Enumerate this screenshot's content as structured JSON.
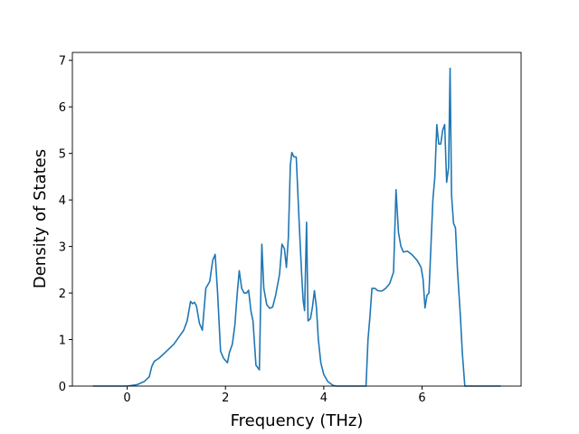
{
  "chart_data": {
    "type": "line",
    "xlabel": "Frequency (THz)",
    "ylabel": "Density of States",
    "color": "#1f77b4",
    "xlim": [
      -1.115,
      8.015
    ],
    "ylim": [
      0,
      7.17
    ],
    "xticks": [
      0,
      2,
      4,
      6
    ],
    "yticks": [
      0,
      1,
      2,
      3,
      4,
      5,
      6,
      7
    ],
    "x": [
      -0.7,
      0,
      0.2,
      0.35,
      0.45,
      0.5,
      0.55,
      0.65,
      0.8,
      0.95,
      1.05,
      1.15,
      1.22,
      1.29,
      1.33,
      1.37,
      1.41,
      1.47,
      1.53,
      1.6,
      1.68,
      1.74,
      1.79,
      1.84,
      1.9,
      1.96,
      2.04,
      2.08,
      2.14,
      2.19,
      2.24,
      2.28,
      2.33,
      2.38,
      2.43,
      2.47,
      2.52,
      2.56,
      2.62,
      2.69,
      2.71,
      2.74,
      2.78,
      2.84,
      2.9,
      2.96,
      3.02,
      3.1,
      3.15,
      3.2,
      3.24,
      3.28,
      3.32,
      3.35,
      3.39,
      3.44,
      3.5,
      3.55,
      3.58,
      3.61,
      3.65,
      3.68,
      3.73,
      3.77,
      3.81,
      3.85,
      3.89,
      3.94,
      4.0,
      4.08,
      4.18,
      4.25,
      4.86,
      4.9,
      4.94,
      4.98,
      5.04,
      5.1,
      5.18,
      5.26,
      5.34,
      5.42,
      5.47,
      5.52,
      5.57,
      5.62,
      5.7,
      5.8,
      5.9,
      5.98,
      6.02,
      6.06,
      6.1,
      6.14,
      6.18,
      6.22,
      6.26,
      6.3,
      6.34,
      6.38,
      6.42,
      6.46,
      6.5,
      6.54,
      6.57,
      6.6,
      6.64,
      6.68,
      6.72,
      6.78,
      6.82,
      6.87,
      7.6
    ],
    "values": [
      0,
      0,
      0.03,
      0.1,
      0.2,
      0.42,
      0.53,
      0.6,
      0.75,
      0.9,
      1.05,
      1.2,
      1.4,
      1.82,
      1.77,
      1.8,
      1.72,
      1.35,
      1.2,
      2.1,
      2.25,
      2.7,
      2.83,
      2.0,
      0.75,
      0.6,
      0.5,
      0.72,
      0.9,
      1.3,
      2.0,
      2.48,
      2.1,
      2.0,
      2.0,
      2.06,
      1.6,
      1.4,
      0.45,
      0.35,
      1.5,
      3.05,
      2.1,
      1.75,
      1.67,
      1.7,
      1.95,
      2.4,
      3.05,
      2.95,
      2.55,
      3.2,
      4.75,
      5.02,
      4.93,
      4.92,
      3.5,
      2.4,
      1.85,
      1.62,
      3.52,
      1.4,
      1.45,
      1.7,
      2.05,
      1.7,
      1.0,
      0.5,
      0.25,
      0.1,
      0.02,
      0,
      0,
      1.0,
      1.5,
      2.1,
      2.1,
      2.05,
      2.04,
      2.1,
      2.2,
      2.45,
      4.22,
      3.3,
      3.0,
      2.88,
      2.9,
      2.82,
      2.7,
      2.55,
      2.3,
      1.68,
      1.95,
      2.0,
      3.0,
      4.0,
      4.5,
      5.62,
      5.2,
      5.2,
      5.5,
      5.62,
      4.38,
      4.7,
      6.83,
      4.1,
      3.5,
      3.4,
      2.5,
      1.5,
      0.7,
      0,
      0
    ]
  }
}
